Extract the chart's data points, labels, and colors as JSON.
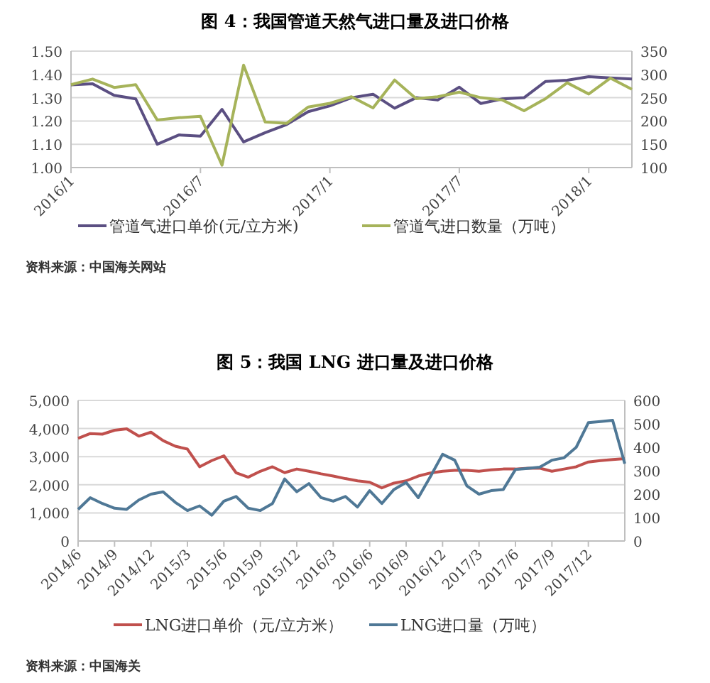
{
  "chart_data": [
    {
      "type": "line",
      "title": "图 4：我国管道天然气进口量及进口价格",
      "categories": [
        "2016/1",
        null,
        null,
        null,
        null,
        null,
        "2016/7",
        null,
        null,
        null,
        null,
        null,
        "2017/1",
        null,
        null,
        null,
        null,
        null,
        "2017/7",
        null,
        null,
        null,
        null,
        null,
        "2018/1",
        null,
        null
      ],
      "series": [
        {
          "name": "管道气进口单价(元/立方米)",
          "color": "#5b4f82",
          "values": [
            1.355,
            1.36,
            1.31,
            1.295,
            1.1,
            1.14,
            1.135,
            1.25,
            1.11,
            1.15,
            1.185,
            1.24,
            1.265,
            1.3,
            1.315,
            1.255,
            1.3,
            1.29,
            1.345,
            1.275,
            1.295,
            1.3,
            1.37,
            1.375,
            1.39,
            1.385,
            1.38
          ]
        },
        {
          "name": "管道气进口数量（万吨）",
          "color": "#a6b35a",
          "axis": "y2",
          "values": [
            278,
            290,
            272,
            278,
            202,
            207,
            210,
            105,
            320,
            198,
            195,
            230,
            238,
            252,
            228,
            288,
            248,
            252,
            262,
            250,
            245,
            222,
            248,
            282,
            258,
            292,
            268
          ]
        }
      ],
      "ylim": [
        1.0,
        1.5
      ],
      "yticks": [
        {
          "value": 1.0,
          "label": "1.00"
        },
        {
          "value": 1.1,
          "label": "1.10"
        },
        {
          "value": 1.2,
          "label": "1.20"
        },
        {
          "value": 1.3,
          "label": "1.30"
        },
        {
          "value": 1.4,
          "label": "1.40"
        },
        {
          "value": 1.5,
          "label": "1.50"
        }
      ],
      "y2lim": [
        100,
        350
      ],
      "y2ticks": [
        100,
        150,
        200,
        250,
        300,
        350
      ],
      "grid": "y",
      "legend": "bottom",
      "annotations": [
        "资料来源：中国海关网站"
      ]
    },
    {
      "type": "line",
      "title": "图 5：我国 LNG 进口量及进口价格",
      "categories": [
        "2014/6",
        null,
        null,
        "2014/9",
        null,
        null,
        "2014/12",
        null,
        null,
        "2015/3",
        null,
        null,
        "2015/6",
        null,
        null,
        "2015/9",
        null,
        null,
        "2015/12",
        null,
        null,
        "2016/3",
        null,
        null,
        "2016/6",
        null,
        null,
        "2016/9",
        null,
        null,
        "2016/12",
        null,
        null,
        "2017/3",
        null,
        null,
        "2017/6",
        null,
        null,
        "2017/9",
        null,
        null,
        "2017/12",
        null,
        null,
        null
      ],
      "series": [
        {
          "name": "LNG进口单价（元/立方米）",
          "color": "#c0504d",
          "values": [
            3650,
            3820,
            3800,
            3940,
            3990,
            3730,
            3870,
            3570,
            3370,
            3270,
            2640,
            2860,
            3030,
            2430,
            2270,
            2480,
            2640,
            2430,
            2560,
            2480,
            2390,
            2310,
            2220,
            2140,
            2090,
            1890,
            2060,
            2140,
            2310,
            2420,
            2480,
            2510,
            2510,
            2480,
            2530,
            2560,
            2560,
            2590,
            2590,
            2480,
            2560,
            2640,
            2810,
            2860,
            2900,
            2930
          ]
        },
        {
          "name": "LNG进口量（万吨）",
          "color": "#4f7896",
          "axis": "y2",
          "values": [
            135,
            185,
            160,
            140,
            135,
            175,
            200,
            210,
            165,
            130,
            150,
            110,
            170,
            190,
            140,
            130,
            160,
            265,
            210,
            245,
            185,
            170,
            190,
            145,
            215,
            160,
            220,
            250,
            185,
            275,
            370,
            345,
            235,
            200,
            215,
            220,
            305,
            310,
            315,
            345,
            355,
            400,
            505,
            510,
            515,
            330
          ]
        }
      ],
      "ylim": [
        0,
        5000
      ],
      "yticks": [
        0,
        {
          "value": 1000,
          "label": "1,000"
        },
        {
          "value": 2000,
          "label": "2,000"
        },
        {
          "value": 3000,
          "label": "3,000"
        },
        {
          "value": 4000,
          "label": "4,000"
        },
        {
          "value": 5000,
          "label": "5,000"
        }
      ],
      "y2lim": [
        0,
        600
      ],
      "y2ticks": [
        0,
        100,
        200,
        300,
        400,
        500,
        600
      ],
      "grid": "y",
      "legend": "bottom",
      "annotations": [
        "资料来源：中国海关"
      ]
    }
  ]
}
